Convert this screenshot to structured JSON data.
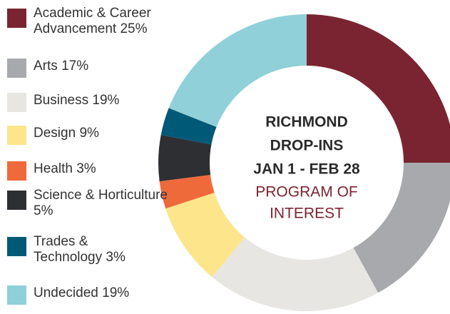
{
  "chart_data": {
    "type": "donut",
    "title": [
      "RICHMOND",
      "DROP-INS",
      "JAN 1 -  FEB 28"
    ],
    "subtitle": [
      "PROGRAM OF",
      "INTEREST"
    ],
    "categories": [
      "Academic & Career Advancement",
      "Arts",
      "Business",
      "Design",
      "Health",
      "Science & Horticulture",
      "Trades & Technology",
      "Undecided"
    ],
    "values": [
      25,
      17,
      19,
      9,
      3,
      5,
      3,
      19
    ],
    "value_labels": [
      "25%",
      "17%",
      "19%",
      "9%",
      "3%",
      "5%",
      "3%",
      "19%"
    ],
    "colors": [
      "#7b2431",
      "#a7a9ac",
      "#e7e6e2",
      "#fde58c",
      "#ef6a3b",
      "#2d2f33",
      "#005a77",
      "#8fd0d9"
    ]
  }
}
